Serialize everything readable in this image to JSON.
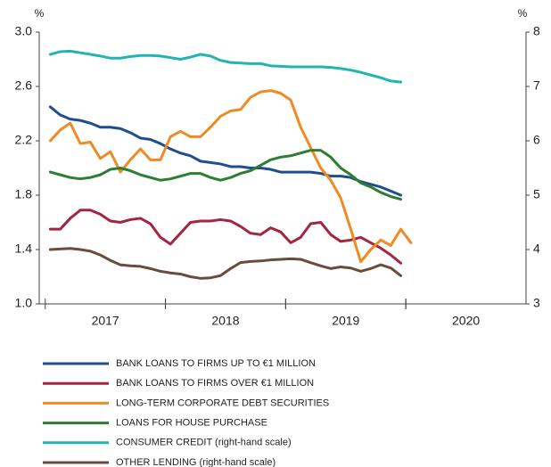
{
  "chart_data": {
    "type": "line",
    "y_label": "%",
    "y2_label": "%",
    "xlim": [
      2016.45,
      2020.5
    ],
    "xticks": [
      2017,
      2018,
      2019,
      2020
    ],
    "ylim": [
      1.0,
      3.0
    ],
    "yticks": [
      {
        "value": 1.0,
        "label": "1.0"
      },
      1.4,
      1.8,
      2.2,
      2.6,
      {
        "value": 3.0,
        "label": "3.0"
      }
    ],
    "y2lim": [
      3,
      8
    ],
    "y2ticks": [
      3,
      4,
      5,
      6,
      7,
      8
    ],
    "x": [
      2016.542,
      2016.625,
      2016.708,
      2016.792,
      2016.875,
      2016.958,
      2017.042,
      2017.125,
      2017.208,
      2017.292,
      2017.375,
      2017.458,
      2017.542,
      2017.625,
      2017.708,
      2017.792,
      2017.875,
      2017.958,
      2018.042,
      2018.125,
      2018.208,
      2018.292,
      2018.375,
      2018.458,
      2018.542,
      2018.625,
      2018.708,
      2018.792,
      2018.875,
      2018.958,
      2019.042,
      2019.125,
      2019.208,
      2019.292,
      2019.375,
      2019.458,
      2019.542
    ],
    "series": [
      {
        "name": "BANK LOANS TO FIRMS UP TO €1 MILLION",
        "color": "#1f4e8c",
        "values": [
          2.45,
          2.39,
          2.36,
          2.35,
          2.33,
          2.3,
          2.3,
          2.29,
          2.26,
          2.22,
          2.21,
          2.18,
          2.14,
          2.11,
          2.09,
          2.05,
          2.04,
          2.03,
          2.01,
          2.01,
          2.0,
          2.0,
          1.99,
          1.97,
          1.97,
          1.97,
          1.97,
          1.96,
          1.94,
          1.94,
          1.93,
          1.9,
          1.88,
          1.86,
          1.83,
          1.8,
          null
        ]
      },
      {
        "name": "BANK LOANS TO FIRMS OVER €1 MILLION",
        "color": "#a3253f",
        "values": [
          1.55,
          1.55,
          1.63,
          1.69,
          1.69,
          1.66,
          1.61,
          1.6,
          1.62,
          1.63,
          1.59,
          1.49,
          1.44,
          1.52,
          1.6,
          1.61,
          1.61,
          1.62,
          1.61,
          1.57,
          1.52,
          1.51,
          1.56,
          1.53,
          1.45,
          1.49,
          1.59,
          1.6,
          1.51,
          1.46,
          1.47,
          1.49,
          1.45,
          1.41,
          1.36,
          1.3,
          null
        ]
      },
      {
        "name": "LONG-TERM CORPORATE DEBT SECURITIES",
        "color": "#f08a24",
        "values": [
          2.2,
          2.28,
          2.33,
          2.18,
          2.19,
          2.07,
          2.12,
          1.97,
          2.06,
          2.14,
          2.06,
          2.06,
          2.23,
          2.27,
          2.23,
          2.23,
          2.3,
          2.38,
          2.42,
          2.43,
          2.52,
          2.56,
          2.57,
          2.55,
          2.5,
          2.3,
          2.15,
          2.0,
          1.91,
          1.78,
          1.55,
          1.31,
          1.4,
          1.47,
          1.43,
          1.55,
          1.45
        ]
      },
      {
        "name": "LOANS FOR HOUSE PURCHASE",
        "color": "#2e7d32",
        "values": [
          1.97,
          1.95,
          1.93,
          1.92,
          1.93,
          1.95,
          1.99,
          2.0,
          1.98,
          1.95,
          1.93,
          1.91,
          1.92,
          1.94,
          1.96,
          1.96,
          1.93,
          1.91,
          1.93,
          1.96,
          1.98,
          2.02,
          2.06,
          2.08,
          2.09,
          2.11,
          2.13,
          2.13,
          2.08,
          2.0,
          1.95,
          1.89,
          1.86,
          1.82,
          1.79,
          1.77,
          null
        ]
      },
      {
        "name": "CONSUMER CREDIT (right-hand scale)",
        "color": "#22b5b0",
        "axis": "y2",
        "values": [
          7.59,
          7.64,
          7.65,
          7.62,
          7.59,
          7.56,
          7.52,
          7.52,
          7.55,
          7.57,
          7.57,
          7.56,
          7.53,
          7.5,
          7.54,
          7.59,
          7.56,
          7.48,
          7.44,
          7.43,
          7.42,
          7.42,
          7.38,
          7.37,
          7.36,
          7.36,
          7.36,
          7.36,
          7.35,
          7.33,
          7.3,
          7.26,
          7.21,
          7.16,
          7.1,
          7.08,
          null
        ]
      },
      {
        "name": "OTHER LENDING (right-hand scale)",
        "color": "#6b4c3b",
        "axis": "y2",
        "values": [
          4.0,
          4.01,
          4.02,
          4.0,
          3.97,
          3.9,
          3.8,
          3.72,
          3.7,
          3.69,
          3.65,
          3.6,
          3.57,
          3.55,
          3.5,
          3.47,
          3.48,
          3.52,
          3.65,
          3.76,
          3.78,
          3.79,
          3.81,
          3.82,
          3.83,
          3.82,
          3.76,
          3.7,
          3.65,
          3.68,
          3.66,
          3.6,
          3.65,
          3.72,
          3.66,
          3.52,
          null
        ]
      }
    ]
  }
}
